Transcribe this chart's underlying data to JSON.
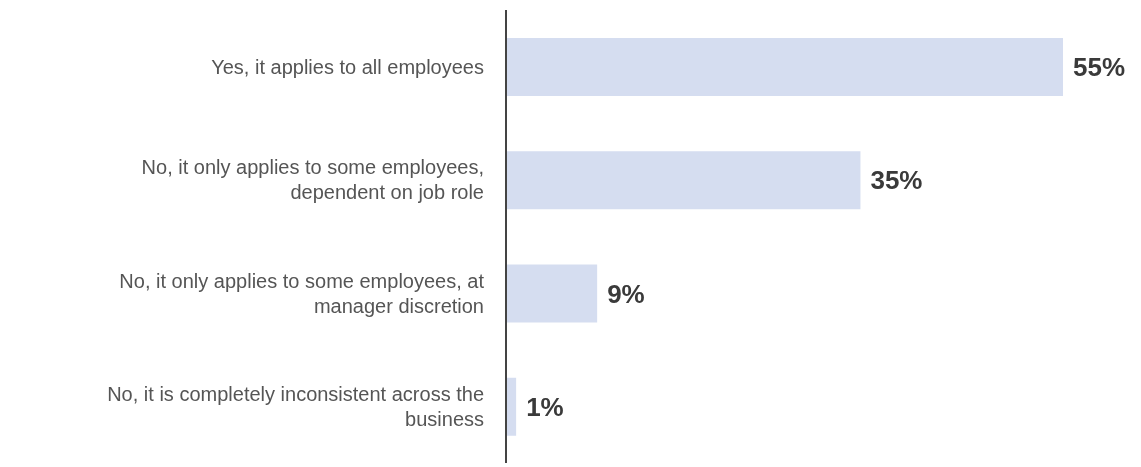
{
  "chart_data": {
    "type": "bar",
    "orientation": "horizontal",
    "categories": [
      "Yes, it applies to all employees",
      "No, it only applies to some employees, dependent on job role",
      "No, it only applies to some employees, at manager discretion",
      "No, it is completely inconsistent across the business"
    ],
    "values": [
      55,
      35,
      9,
      1
    ],
    "color": "#d5ddf0",
    "data_labels": true,
    "value_labels": [
      "55%",
      "35%",
      "9%",
      "1%"
    ],
    "legend": false,
    "grid": false
  }
}
